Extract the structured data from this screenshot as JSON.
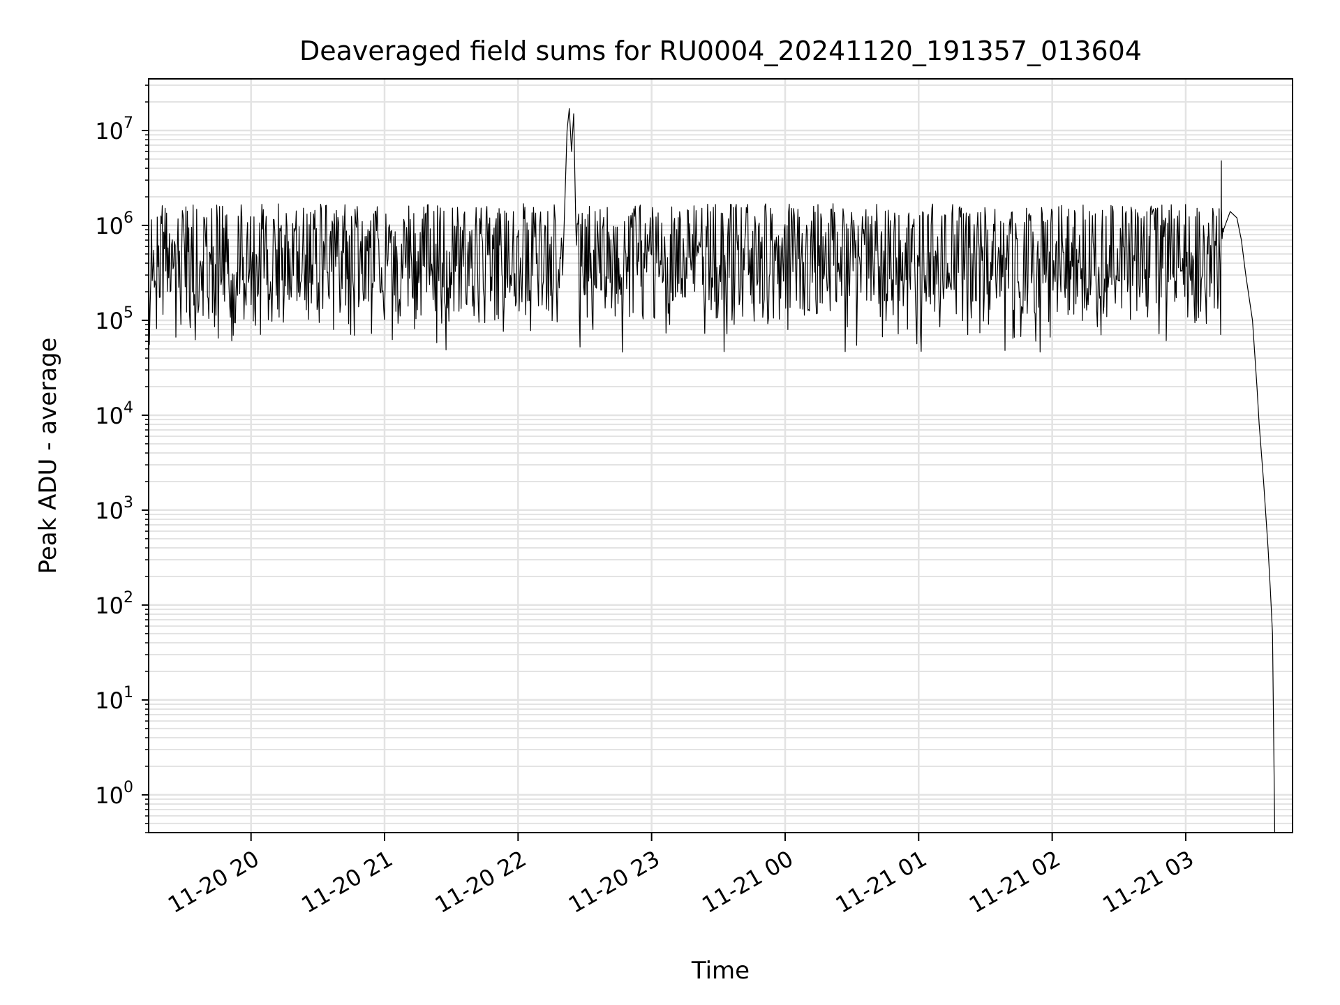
{
  "chart_data": {
    "type": "line",
    "title": "Deaveraged field sums for RU0004_20241120_191357_013604",
    "xlabel": "Time",
    "ylabel": "Peak ADU - average",
    "y_scale": "log",
    "ylim": [
      0.4,
      35000000.0
    ],
    "xlim": [
      "2024-11-20 19:14",
      "2024-11-21 03:48"
    ],
    "grid": true,
    "grid_minor": true,
    "line_color": "#000000",
    "grid_color": "#e3e3e3",
    "x_ticks": [
      {
        "at": "2024-11-20 20:00",
        "label": "11-20 20"
      },
      {
        "at": "2024-11-20 21:00",
        "label": "11-20 21"
      },
      {
        "at": "2024-11-20 22:00",
        "label": "11-20 22"
      },
      {
        "at": "2024-11-20 23:00",
        "label": "11-20 23"
      },
      {
        "at": "2024-11-21 00:00",
        "label": "11-21 00"
      },
      {
        "at": "2024-11-21 01:00",
        "label": "11-21 01"
      },
      {
        "at": "2024-11-21 02:00",
        "label": "11-21 02"
      },
      {
        "at": "2024-11-21 03:00",
        "label": "11-21 03"
      }
    ],
    "y_ticks": [
      {
        "value": 1,
        "base": "10",
        "exp": "0"
      },
      {
        "value": 10,
        "base": "10",
        "exp": "1"
      },
      {
        "value": 100,
        "base": "10",
        "exp": "2"
      },
      {
        "value": 1000,
        "base": "10",
        "exp": "3"
      },
      {
        "value": 10000,
        "base": "10",
        "exp": "4"
      },
      {
        "value": 100000,
        "base": "10",
        "exp": "5"
      },
      {
        "value": 1000000,
        "base": "10",
        "exp": "6"
      },
      {
        "value": 10000000,
        "base": "10",
        "exp": "7"
      }
    ],
    "series": [
      {
        "noisy_band": {
          "start": "2024-11-20 19:14",
          "end": "2024-11-21 03:17",
          "typical_high": 1200000,
          "typical_low": 90000,
          "min": 45000,
          "max": 1700000
        },
        "points": [
          [
            "2024-11-20 19:14",
            800000
          ],
          [
            "2024-11-20 22:20",
            300000
          ],
          [
            "2024-11-20 22:22",
            10000000
          ],
          [
            "2024-11-20 22:23",
            17000000
          ],
          [
            "2024-11-20 22:24",
            6000000
          ],
          [
            "2024-11-20 22:25",
            15000000
          ],
          [
            "2024-11-20 22:26",
            900000
          ],
          [
            "2024-11-21 03:10",
            500000
          ],
          [
            "2024-11-21 03:15",
            1500000
          ],
          [
            "2024-11-21 03:16",
            4800000
          ],
          [
            "2024-11-21 03:17",
            900000
          ],
          [
            "2024-11-21 03:20",
            1400000
          ],
          [
            "2024-11-21 03:23",
            1200000
          ],
          [
            "2024-11-21 03:25",
            700000
          ],
          [
            "2024-11-21 03:27",
            300000
          ],
          [
            "2024-11-21 03:30",
            100000
          ],
          [
            "2024-11-21 03:32",
            20000
          ],
          [
            "2024-11-21 03:33",
            8000
          ],
          [
            "2024-11-21 03:35",
            2000
          ],
          [
            "2024-11-21 03:37",
            400
          ],
          [
            "2024-11-21 03:38",
            150
          ],
          [
            "2024-11-21 03:39",
            50
          ],
          [
            "2024-11-21 03:40",
            0.4
          ]
        ]
      }
    ]
  }
}
